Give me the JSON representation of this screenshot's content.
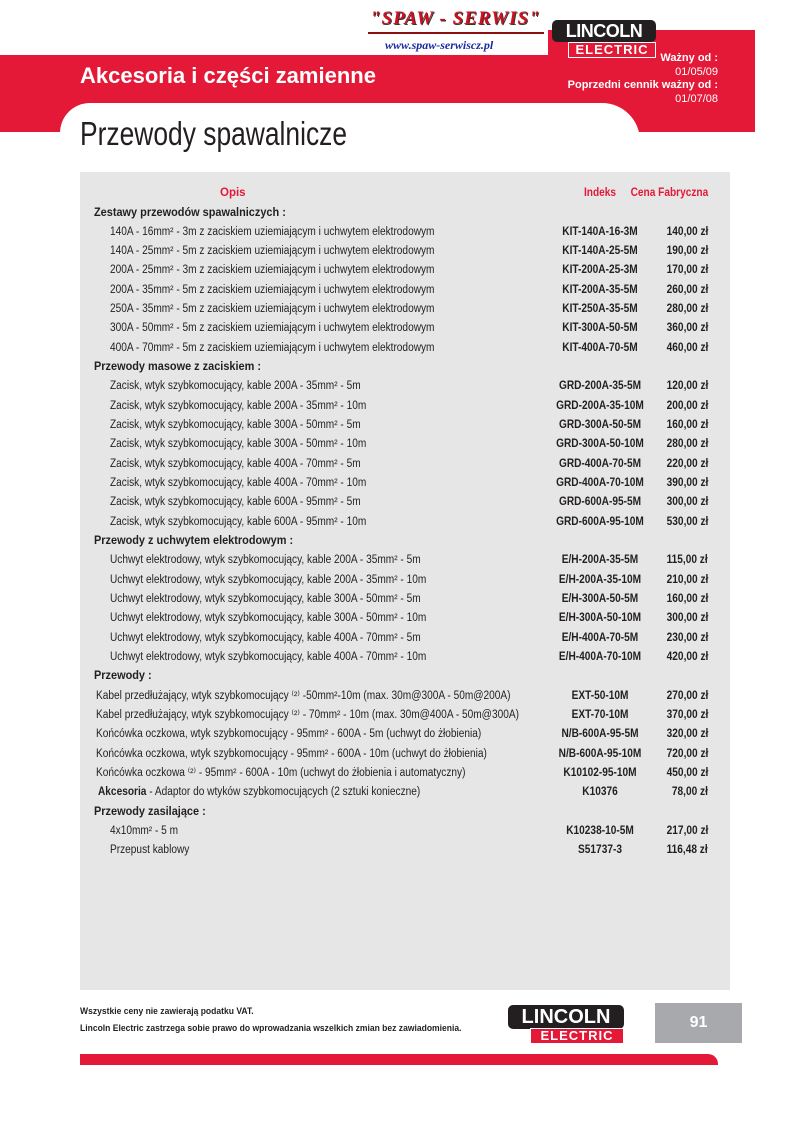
{
  "header": {
    "brand_dealer": "\"SPAW - SERWIS\"",
    "dealer_url": "www.spaw-serwiscz.pl",
    "brand_top": "LINCOLN",
    "brand_bottom": "ELECTRIC",
    "valid_label": "Ważny od :",
    "valid_date": "01/05/09",
    "prev_label": "Poprzedni cennik ważny od :",
    "prev_date": "01/07/08",
    "category": "Akcesoria i części zamienne",
    "title": "Przewody spawalnicze"
  },
  "colors": {
    "accent": "#e31937",
    "panel": "#e6e6e7",
    "dark": "#231f20"
  },
  "table": {
    "columns": [
      "Opis",
      "Indeks",
      "Cena Fabryczna"
    ],
    "rows": [
      {
        "type": "section",
        "desc": "Zestawy przewodów spawalniczych :"
      },
      {
        "type": "item",
        "desc": "140A - 16mm² - 3m z zaciskiem uziemiającym i uchwytem elektrodowym",
        "index": "KIT-140A-16-3M",
        "price": "140,00 zł"
      },
      {
        "type": "item",
        "desc": "140A - 25mm² - 5m z zaciskiem uziemiającym i uchwytem elektrodowym",
        "index": "KIT-140A-25-5M",
        "price": "190,00 zł"
      },
      {
        "type": "item",
        "desc": "200A - 25mm² - 3m z zaciskiem uziemiającym i uchwytem elektrodowym",
        "index": "KIT-200A-25-3M",
        "price": "170,00 zł"
      },
      {
        "type": "item",
        "desc": "200A - 35mm² - 5m z zaciskiem uziemiającym i uchwytem elektrodowym",
        "index": "KIT-200A-35-5M",
        "price": "260,00 zł"
      },
      {
        "type": "item",
        "desc": "250A - 35mm² - 5m z zaciskiem uziemiającym i uchwytem elektrodowym",
        "index": "KIT-250A-35-5M",
        "price": "280,00 zł"
      },
      {
        "type": "item",
        "desc": "300A - 50mm² - 5m z zaciskiem uziemiającym i uchwytem elektrodowym",
        "index": "KIT-300A-50-5M",
        "price": "360,00 zł"
      },
      {
        "type": "item",
        "desc": "400A - 70mm² - 5m z zaciskiem uziemiającym i uchwytem elektrodowym",
        "index": "KIT-400A-70-5M",
        "price": "460,00 zł"
      },
      {
        "type": "section",
        "desc": "Przewody masowe z zaciskiem :"
      },
      {
        "type": "item",
        "desc": "Zacisk, wtyk szybkomocujący, kable 200A - 35mm² - 5m",
        "index": "GRD-200A-35-5M",
        "price": "120,00 zł"
      },
      {
        "type": "item",
        "desc": "Zacisk, wtyk szybkomocujący, kable 200A - 35mm² - 10m",
        "index": "GRD-200A-35-10M",
        "price": "200,00 zł"
      },
      {
        "type": "item",
        "desc": "Zacisk, wtyk szybkomocujący, kable 300A - 50mm² - 5m",
        "index": "GRD-300A-50-5M",
        "price": "160,00 zł"
      },
      {
        "type": "item",
        "desc": "Zacisk, wtyk szybkomocujący, kable 300A - 50mm² - 10m",
        "index": "GRD-300A-50-10M",
        "price": "280,00 zł"
      },
      {
        "type": "item",
        "desc": "Zacisk, wtyk szybkomocujący, kable 400A - 70mm² - 5m",
        "index": "GRD-400A-70-5M",
        "price": "220,00 zł"
      },
      {
        "type": "item",
        "desc": "Zacisk, wtyk szybkomocujący, kable 400A - 70mm² - 10m",
        "index": "GRD-400A-70-10M",
        "price": "390,00 zł"
      },
      {
        "type": "item",
        "desc": "Zacisk, wtyk szybkomocujący, kable 600A - 95mm² - 5m",
        "index": "GRD-600A-95-5M",
        "price": "300,00 zł"
      },
      {
        "type": "item",
        "desc": "Zacisk, wtyk szybkomocujący, kable 600A - 95mm² - 10m",
        "index": "GRD-600A-95-10M",
        "price": "530,00 zł"
      },
      {
        "type": "section",
        "desc": "Przewody z uchwytem elektrodowym :"
      },
      {
        "type": "item",
        "desc": "Uchwyt elektrodowy, wtyk szybkomocujący, kable 200A - 35mm² - 5m",
        "index": "E/H-200A-35-5M",
        "price": "115,00 zł"
      },
      {
        "type": "item",
        "desc": "Uchwyt elektrodowy, wtyk szybkomocujący, kable 200A - 35mm² - 10m",
        "index": "E/H-200A-35-10M",
        "price": "210,00 zł"
      },
      {
        "type": "item",
        "desc": "Uchwyt elektrodowy, wtyk szybkomocujący, kable 300A - 50mm² - 5m",
        "index": "E/H-300A-50-5M",
        "price": "160,00 zł"
      },
      {
        "type": "item",
        "desc": "Uchwyt elektrodowy, wtyk szybkomocujący, kable 300A - 50mm² - 10m",
        "index": "E/H-300A-50-10M",
        "price": "300,00 zł"
      },
      {
        "type": "item",
        "desc": "Uchwyt elektrodowy, wtyk szybkomocujący, kable 400A - 70mm² - 5m",
        "index": "E/H-400A-70-5M",
        "price": "230,00 zł"
      },
      {
        "type": "item",
        "desc": "Uchwyt elektrodowy, wtyk szybkomocujący, kable 400A - 70mm² - 10m",
        "index": "E/H-400A-70-10M",
        "price": "420,00 zł"
      },
      {
        "type": "section",
        "desc": "Przewody :"
      },
      {
        "type": "item2",
        "desc": "Kabel przedłużający, wtyk szybkomocujący ⁽²⁾ -50mm²-10m (max. 30m@300A - 50m@200A)",
        "index": "EXT-50-10M",
        "price": "270,00 zł"
      },
      {
        "type": "item2",
        "desc": "Kabel przedłużający, wtyk szybkomocujący ⁽²⁾ - 70mm² - 10m (max. 30m@400A - 50m@300A)",
        "index": "EXT-70-10M",
        "price": "370,00 zł"
      },
      {
        "type": "item2",
        "desc": "Końcówka oczkowa, wtyk szybkomocujący - 95mm² - 600A -  5m (uchwyt do żłobienia)",
        "index": "N/B-600A-95-5M",
        "price": "320,00 zł"
      },
      {
        "type": "item2",
        "desc": "Końcówka oczkowa, wtyk szybkomocujący - 95mm² - 600A -  10m (uchwyt do żłobienia)",
        "index": "N/B-600A-95-10M",
        "price": "720,00 zł"
      },
      {
        "type": "item2",
        "desc": "Końcówka oczkowa ⁽²⁾  - 95mm² - 600A -  10m (uchwyt do żłobienia i automatyczny)",
        "index": "K10102-95-10M",
        "price": "450,00 zł"
      },
      {
        "type": "akc",
        "label": "Akcesoria",
        "desc": " - Adaptor do wtyków szybkomocujących (2 sztuki konieczne)",
        "index": "K10376",
        "price": "78,00 zł"
      },
      {
        "type": "section",
        "desc": "Przewody zasilające :"
      },
      {
        "type": "item",
        "desc": "4x10mm² - 5 m",
        "index": "K10238-10-5M",
        "price": "217,00 zł"
      },
      {
        "type": "item",
        "desc": "Przepust kablowy",
        "index": "S51737-3",
        "price": "116,48 zł"
      }
    ]
  },
  "footer": {
    "vat_note": "Wszystkie ceny nie zawierają podatku VAT.",
    "disclaimer": "Lincoln Electric zastrzega sobie prawo do wprowadzania wszelkich zmian bez zawiadomienia.",
    "page_number": "91",
    "brand_top": "LINCOLN",
    "brand_bottom": "ELECTRIC"
  }
}
